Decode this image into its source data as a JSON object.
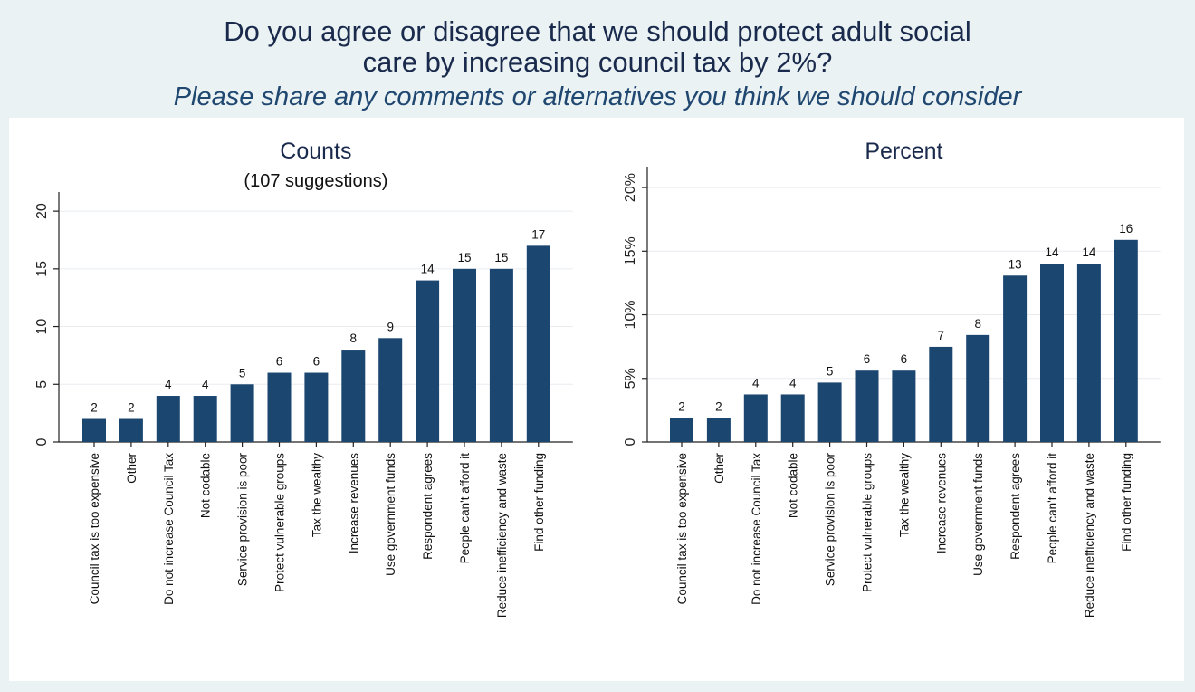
{
  "header": {
    "title_line1": "Do you agree or disagree that we should protect adult social",
    "title_line2": "care by increasing council tax by 2%?",
    "subtitle": "Please share any comments or alternatives you think we should consider"
  },
  "chart_data": [
    {
      "type": "bar",
      "title": "Counts",
      "subtitle": "(107 suggestions)",
      "categories": [
        "Council tax is too expensive",
        "Other",
        "Do not increase Council Tax",
        "Not codable",
        "Service provision is poor",
        "Protect vulnerable groups",
        "Tax the wealthy",
        "Increase revenues",
        "Use government funds",
        "Respondent agrees",
        "People can't afford it",
        "Reduce inefficiency and waste",
        "Find other funding"
      ],
      "values": [
        2,
        2,
        4,
        4,
        5,
        6,
        6,
        8,
        9,
        14,
        15,
        15,
        17
      ],
      "data_labels": [
        "2",
        "2",
        "4",
        "4",
        "5",
        "6",
        "6",
        "8",
        "9",
        "14",
        "15",
        "15",
        "17"
      ],
      "yticks": [
        0,
        5,
        10,
        15,
        20
      ],
      "ytick_labels": [
        "0",
        "5",
        "10",
        "15",
        "20"
      ],
      "ylim": [
        0,
        21.5
      ],
      "grid": true,
      "bar_color": "#1b4670"
    },
    {
      "type": "bar",
      "title": "Percent",
      "categories": [
        "Council tax is too expensive",
        "Other",
        "Do not increase Council Tax",
        "Not codable",
        "Service provision is poor",
        "Protect vulnerable groups",
        "Tax the wealthy",
        "Increase revenues",
        "Use government funds",
        "Respondent agrees",
        "People can't afford it",
        "Reduce inefficiency and waste",
        "Find other funding"
      ],
      "values": [
        1.87,
        1.87,
        3.74,
        3.74,
        4.67,
        5.61,
        5.61,
        7.48,
        8.41,
        13.08,
        14.02,
        14.02,
        15.89
      ],
      "data_labels": [
        "2",
        "2",
        "4",
        "4",
        "5",
        "6",
        "6",
        "7",
        "8",
        "13",
        "14",
        "14",
        "16"
      ],
      "yticks": [
        0,
        5,
        10,
        15,
        20
      ],
      "ytick_labels": [
        "0",
        "5%",
        "10%",
        "15%",
        "20%"
      ],
      "ylim": [
        0,
        21.5
      ],
      "grid": true,
      "bar_color": "#1b4670"
    }
  ]
}
